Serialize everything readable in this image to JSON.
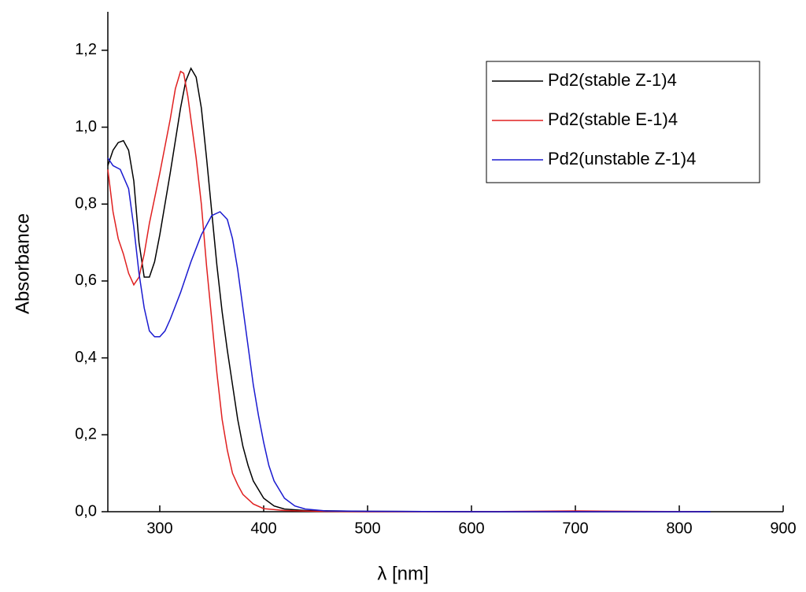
{
  "chart_data": {
    "type": "line",
    "x_label": "λ [nm]",
    "y_label": "Absorbance",
    "xlim": [
      250,
      900
    ],
    "xticks": [
      300,
      400,
      500,
      600,
      700,
      800,
      900
    ],
    "ylim": [
      0,
      1.3
    ],
    "yticks": [
      {
        "value": 0,
        "label": "0,0"
      },
      {
        "value": 0.2,
        "label": "0,2"
      },
      {
        "value": 0.4,
        "label": "0,4"
      },
      {
        "value": 0.6,
        "label": "0,6"
      },
      {
        "value": 0.8,
        "label": "0,8"
      },
      {
        "value": 1.0,
        "label": "1,0"
      },
      {
        "value": 1.2,
        "label": "1,2"
      }
    ],
    "legend": "upper right",
    "series": [
      {
        "name": "Pd2(stable Z-1)4",
        "color": "#000000",
        "x": [
          250,
          255,
          260,
          265,
          270,
          275,
          280,
          285,
          290,
          295,
          300,
          310,
          320,
          325,
          330,
          335,
          340,
          345,
          350,
          355,
          360,
          365,
          370,
          375,
          380,
          385,
          390,
          400,
          410,
          420,
          440,
          500,
          600,
          700,
          830
        ],
        "values": [
          0.9,
          0.94,
          0.96,
          0.965,
          0.94,
          0.86,
          0.7,
          0.61,
          0.61,
          0.65,
          0.72,
          0.88,
          1.05,
          1.12,
          1.153,
          1.13,
          1.05,
          0.92,
          0.78,
          0.64,
          0.52,
          0.42,
          0.33,
          0.24,
          0.17,
          0.12,
          0.08,
          0.035,
          0.015,
          0.007,
          0.003,
          0.001,
          0,
          0,
          0
        ]
      },
      {
        "name": "Pd2(stable E-1)4",
        "color": "#e02020",
        "x": [
          250,
          255,
          260,
          265,
          270,
          275,
          280,
          285,
          290,
          300,
          310,
          315,
          320,
          323,
          327,
          330,
          335,
          340,
          345,
          350,
          355,
          360,
          365,
          370,
          375,
          380,
          390,
          400,
          420,
          450,
          500,
          600,
          700,
          820
        ],
        "values": [
          0.89,
          0.78,
          0.71,
          0.67,
          0.62,
          0.59,
          0.61,
          0.67,
          0.75,
          0.88,
          1.02,
          1.1,
          1.145,
          1.14,
          1.08,
          1.02,
          0.92,
          0.8,
          0.64,
          0.5,
          0.36,
          0.24,
          0.16,
          0.1,
          0.07,
          0.045,
          0.02,
          0.008,
          0.003,
          0.001,
          0,
          0,
          0.002,
          0
        ]
      },
      {
        "name": "Pd2(unstable Z-1)4",
        "color": "#1a1ad0",
        "x": [
          250,
          255,
          262,
          270,
          275,
          280,
          285,
          290,
          295,
          300,
          305,
          310,
          320,
          330,
          340,
          350,
          358,
          365,
          370,
          375,
          380,
          385,
          390,
          395,
          400,
          405,
          410,
          420,
          430,
          440,
          460,
          500,
          600,
          700,
          830
        ],
        "values": [
          0.92,
          0.9,
          0.89,
          0.84,
          0.74,
          0.62,
          0.53,
          0.47,
          0.455,
          0.455,
          0.47,
          0.5,
          0.57,
          0.65,
          0.72,
          0.77,
          0.78,
          0.76,
          0.71,
          0.63,
          0.53,
          0.43,
          0.33,
          0.25,
          0.18,
          0.12,
          0.08,
          0.035,
          0.015,
          0.007,
          0.002,
          0.001,
          0,
          0,
          0
        ]
      }
    ]
  }
}
